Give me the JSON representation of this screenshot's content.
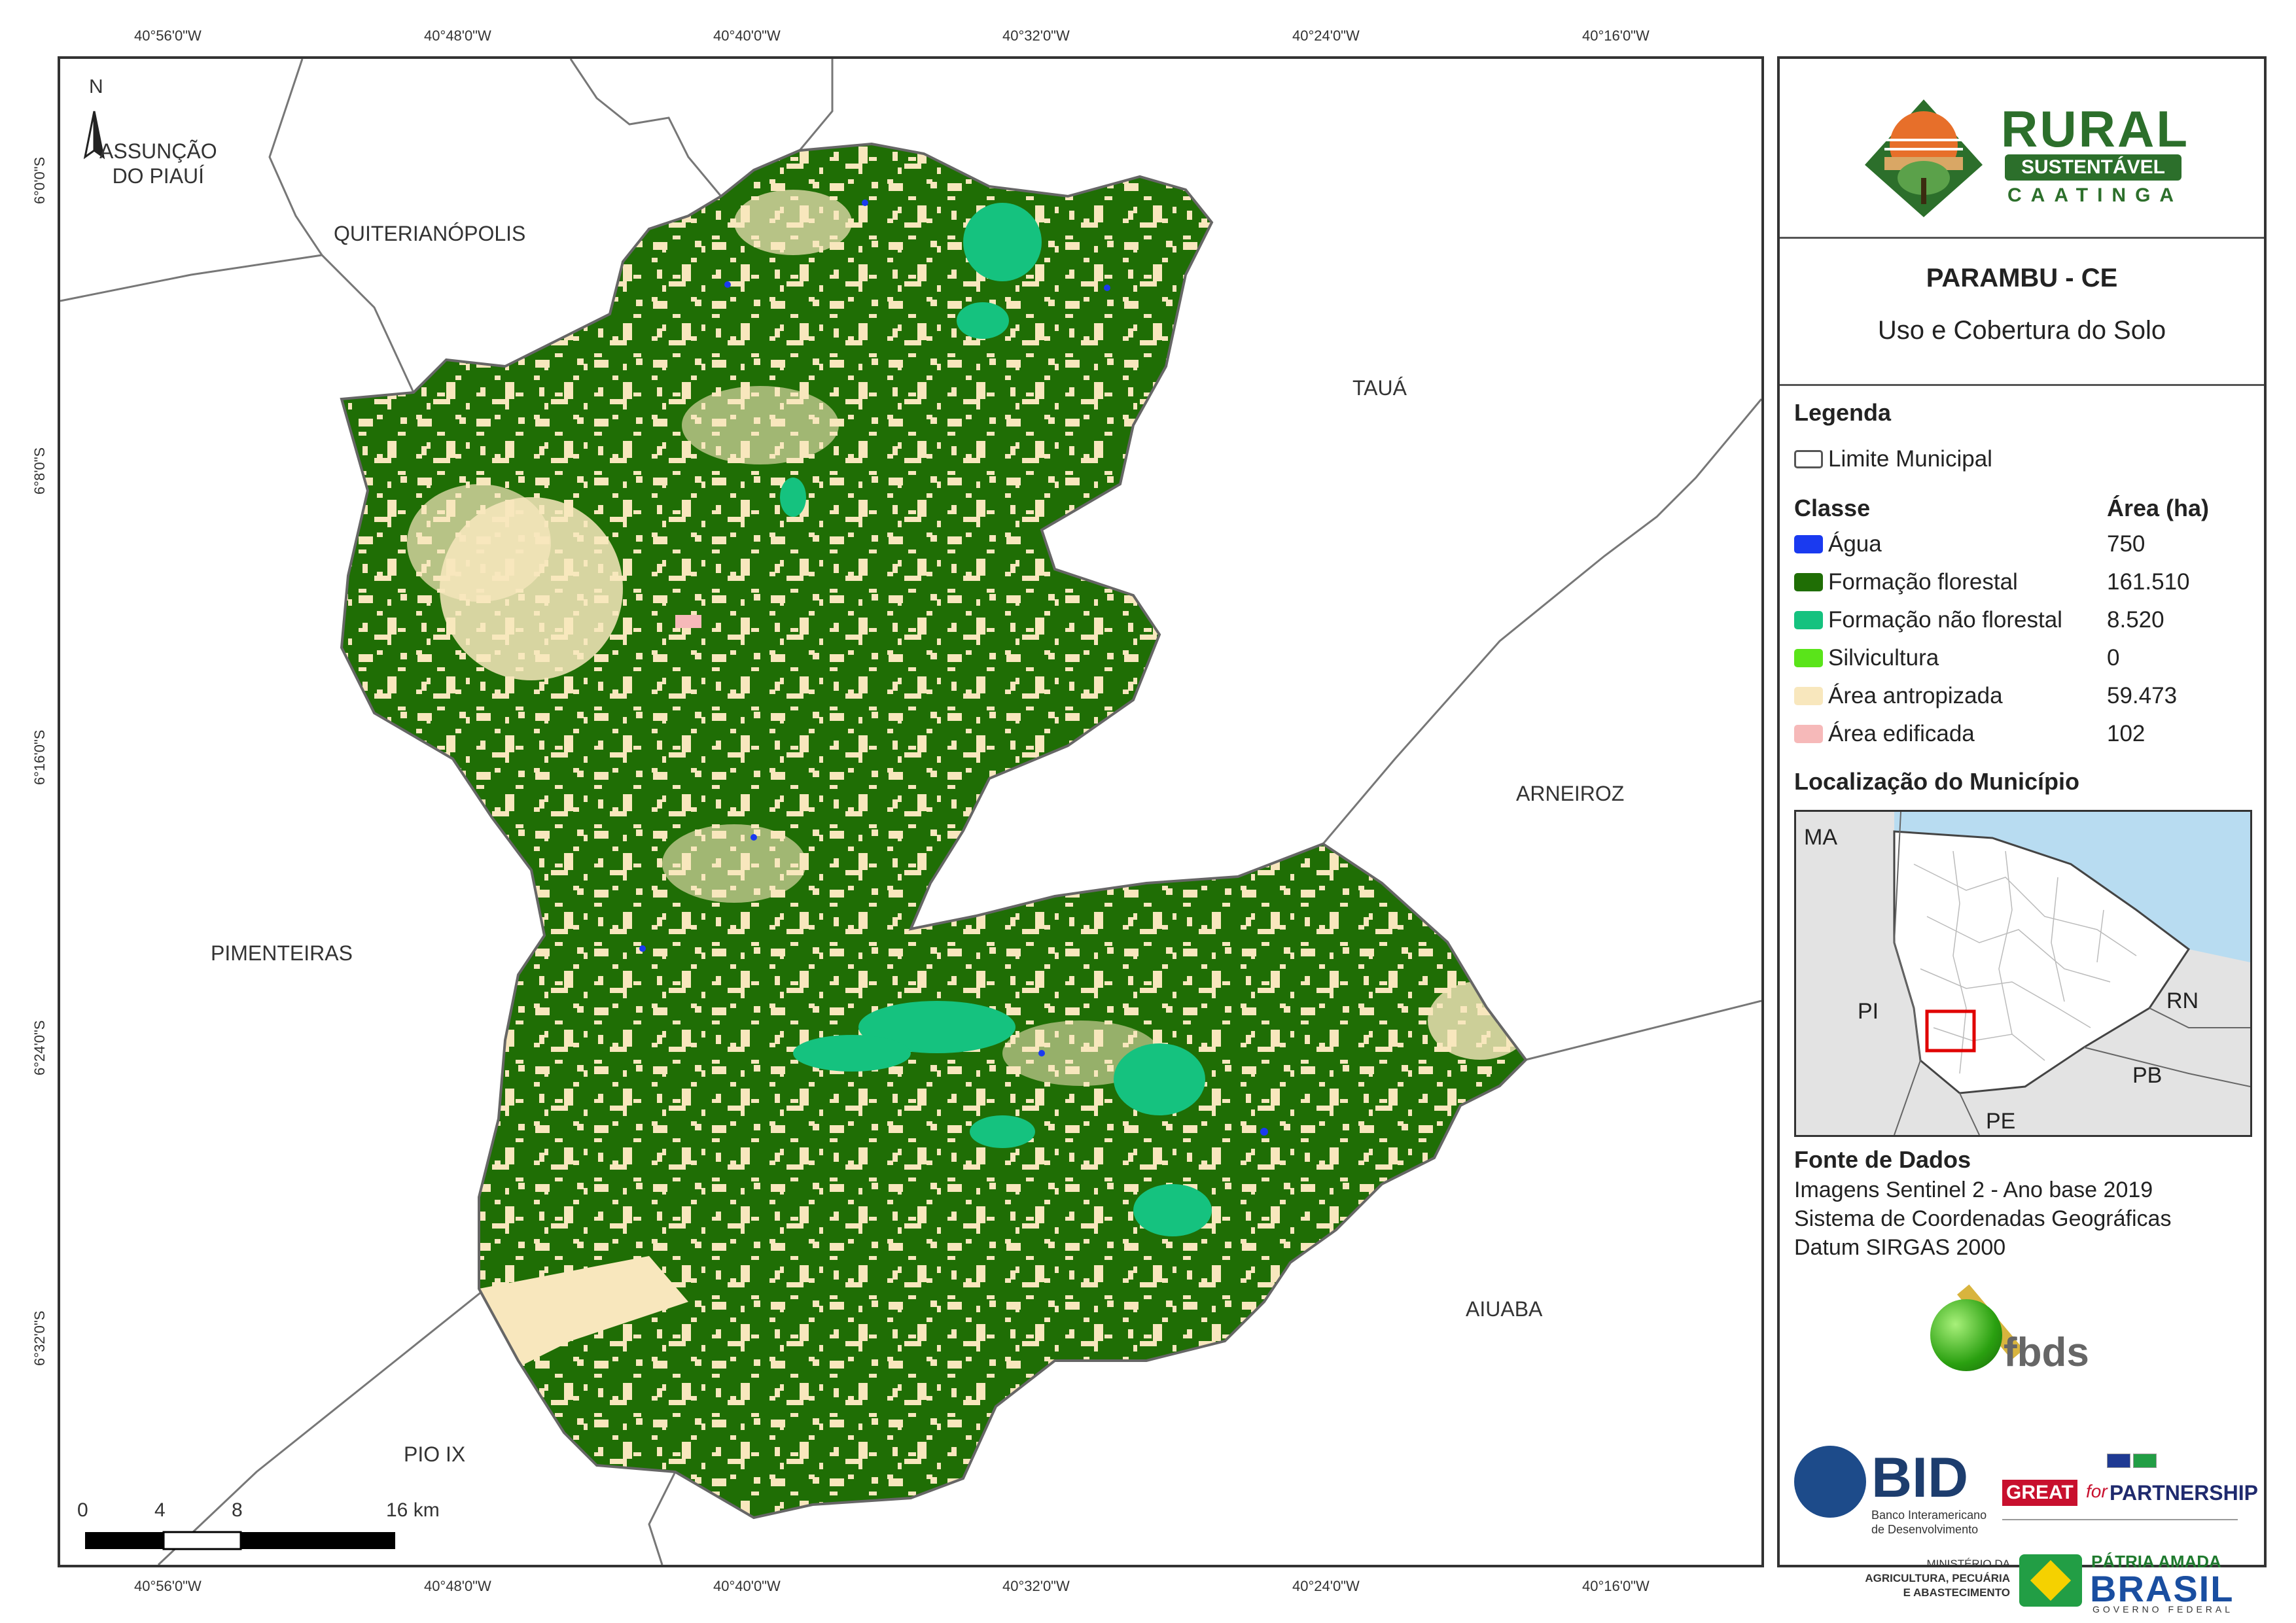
{
  "coordinates": {
    "lon_ticks": [
      "40°56'0\"W",
      "40°48'0\"W",
      "40°40'0\"W",
      "40°32'0\"W",
      "40°24'0\"W",
      "40°16'0\"W"
    ],
    "lat_ticks": [
      "6°0'0\"S",
      "6°8'0\"S",
      "6°16'0\"S",
      "6°24'0\"S",
      "6°32'0\"S"
    ]
  },
  "map": {
    "north_label": "N",
    "neighbors": {
      "assuncao_line1": "ASSUNÇÃO",
      "assuncao_line2": "DO PIAUÍ",
      "quiterianopolis": "QUITERIANÓPOLIS",
      "taua": "TAUÁ",
      "arneiroz": "ARNEIROZ",
      "pimenteiras": "PIMENTEIRAS",
      "aiuaba": "AIUABA",
      "pio_ix": "PIO IX"
    },
    "scale_bar": {
      "labels": [
        "0",
        "4",
        "8",
        "16 km"
      ],
      "values_km": [
        0,
        4,
        8,
        16
      ]
    }
  },
  "panel": {
    "logo": {
      "line1": "RURAL",
      "line2": "SUSTENTÁVEL",
      "line3": "CAATINGA"
    },
    "title": "PARAMBU - CE",
    "subtitle": "Uso e Cobertura do Solo",
    "legend": {
      "heading": "Legenda",
      "boundary_label": "Limite Municipal",
      "class_header": "Classe",
      "area_header": "Área (ha)",
      "classes": [
        {
          "label": "Água",
          "area": "750",
          "color": "#1a3af0"
        },
        {
          "label": "Formação florestal",
          "area": "161.510",
          "color": "#1f6e05"
        },
        {
          "label": "Formação não florestal",
          "area": "8.520",
          "color": "#15c27f"
        },
        {
          "label": "Silvicultura",
          "area": "0",
          "color": "#5ae41a"
        },
        {
          "label": "Área antropizada",
          "area": "59.473",
          "color": "#f8e7bd"
        },
        {
          "label": "Área edificada",
          "area": "102",
          "color": "#f6b9b9"
        }
      ]
    },
    "location": {
      "heading": "Localização do Município",
      "states": [
        "MA",
        "PI",
        "RN",
        "PB",
        "PE"
      ]
    },
    "source": {
      "heading": "Fonte de Dados",
      "lines": [
        "Imagens Sentinel 2 - Ano base 2019",
        "Sistema de Coordenadas Geográficas",
        "Datum SIRGAS 2000"
      ]
    },
    "logos": {
      "fbds": "fbds",
      "bid": "BID",
      "bid_sub1": "Banco Interamericano",
      "bid_sub2": "de Desenvolvimento",
      "great": "GREAT",
      "great_for": "for",
      "partnership": "PARTNERSHIP",
      "ministerio1": "MINISTÉRIO DA",
      "ministerio2": "AGRICULTURA, PECUÁRIA",
      "ministerio3": "E ABASTECIMENTO",
      "patria": "PÁTRIA AMADA",
      "brasil": "BRASIL",
      "governo": "GOVERNO FEDERAL"
    }
  }
}
